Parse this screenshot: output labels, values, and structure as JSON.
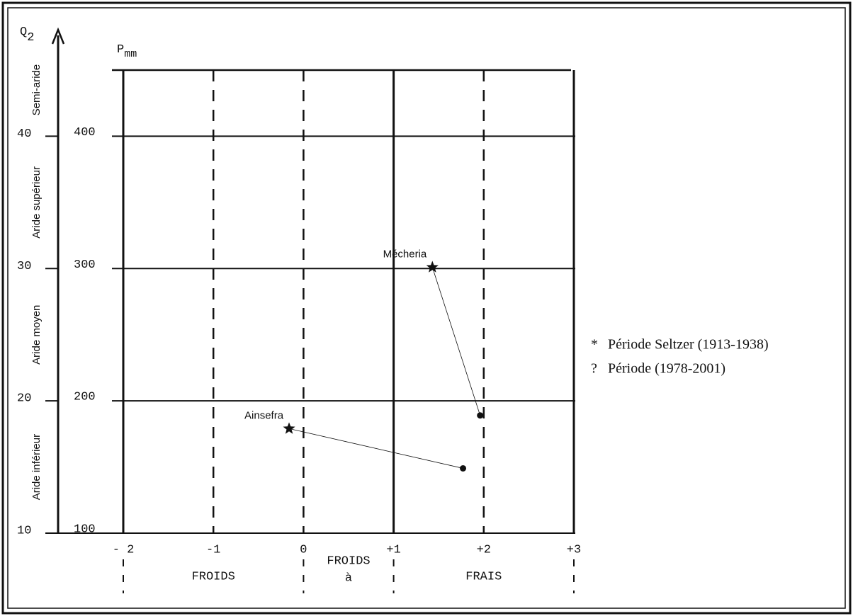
{
  "chart_data": {
    "type": "scatter",
    "y_label": {
      "main": "P",
      "sub": "mm"
    },
    "y2_label": {
      "main": "Q",
      "sub": "2"
    },
    "xlim": [
      -2,
      3
    ],
    "xticks": [
      {
        "value": -2,
        "label": "- 2"
      },
      -1,
      0,
      {
        "value": 1,
        "label": "+1"
      },
      {
        "value": 2,
        "label": "+2"
      },
      {
        "value": 3,
        "label": "+3"
      }
    ],
    "xgrid_dashed": [
      false,
      true,
      true,
      false,
      true,
      false
    ],
    "ylim": [
      100,
      450
    ],
    "yticks": [
      100,
      200,
      300,
      400
    ],
    "y2lim": [
      10,
      45
    ],
    "y2ticks": [
      10,
      20,
      30,
      40
    ],
    "grid": true,
    "color": "#111111",
    "zones": [
      {
        "label": "Semi-aride",
        "from": 40,
        "to": 47
      },
      {
        "label": "Aride supérieur",
        "from": 30,
        "to": 40
      },
      {
        "label": "Aride moyen",
        "from": 20,
        "to": 30
      },
      {
        "label": "Aride inférieur",
        "from": 10,
        "to": 20
      }
    ],
    "thermal_zones": [
      {
        "label": [
          "FROIDS"
        ],
        "from": -2,
        "to": 0
      },
      {
        "label": [
          "FROIDS",
          "à"
        ],
        "from": 0,
        "to": 1
      },
      {
        "label": [
          "FRAIS"
        ],
        "from": 1,
        "to": 3
      }
    ],
    "series": [
      {
        "name": "Période Seltzer (1913-1938)",
        "symbol": "*",
        "marker": "star",
        "x": [
          1.43,
          -0.16
        ],
        "values": [
          301,
          179
        ],
        "point_labels": [
          "Mécheria",
          "Ainsefra"
        ]
      },
      {
        "name": "Période (1978-2001)",
        "symbol": "?",
        "marker": "dot",
        "x": [
          1.96,
          1.77
        ],
        "values": [
          189,
          149
        ]
      }
    ]
  }
}
